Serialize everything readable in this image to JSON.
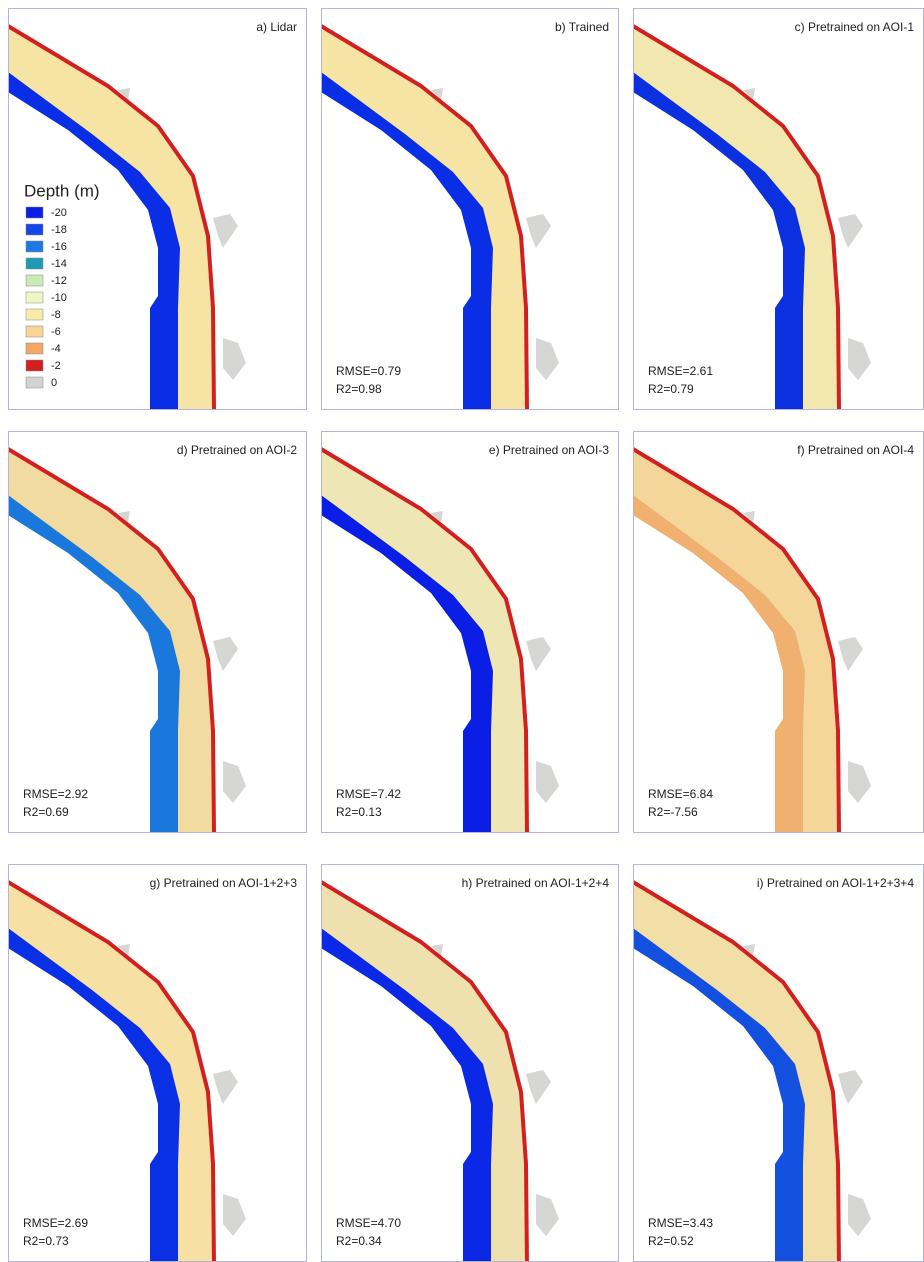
{
  "panels": [
    {
      "title": "a) Lidar"
    },
    {
      "title": "b) Trained",
      "rmse": "RMSE=0.79",
      "r2": "R2=0.98"
    },
    {
      "title": "c) Pretrained on AOI-1",
      "rmse": "RMSE=2.61",
      "r2": "R2=0.79"
    },
    {
      "title": "d) Pretrained on AOI-2",
      "rmse": "RMSE=2.92",
      "r2": "R2=0.69"
    },
    {
      "title": "e) Pretrained on AOI-3",
      "rmse": "RMSE=7.42",
      "r2": "R2=0.13"
    },
    {
      "title": "f) Pretrained on AOI-4",
      "rmse": "RMSE=6.84",
      "r2": "R2=-7.56"
    },
    {
      "title": "g) Pretrained on AOI-1+2+3",
      "rmse": "RMSE=2.69",
      "r2": "R2=0.73"
    },
    {
      "title": "h) Pretrained on AOI-1+2+4",
      "rmse": "RMSE=4.70",
      "r2": "R2=0.34"
    },
    {
      "title": "i) Pretrained on AOI-1+2+3+4",
      "rmse": "RMSE=3.43",
      "r2": "R2=0.52"
    }
  ],
  "legend": {
    "title": "Depth (m)",
    "items": [
      {
        "label": "-20",
        "color": "#0a1ee6"
      },
      {
        "label": "-18",
        "color": "#1448e6"
      },
      {
        "label": "-16",
        "color": "#1e78e6"
      },
      {
        "label": "-14",
        "color": "#1e9ab4"
      },
      {
        "label": "-12",
        "color": "#c8eab4"
      },
      {
        "label": "-10",
        "color": "#f0f5c8"
      },
      {
        "label": "-8",
        "color": "#f8eaa8"
      },
      {
        "label": "-6",
        "color": "#f8d496"
      },
      {
        "label": "-4",
        "color": "#f4a864"
      },
      {
        "label": "-2",
        "color": "#d21e1e"
      },
      {
        "label": "0",
        "color": "#d2d2d2"
      }
    ]
  }
}
